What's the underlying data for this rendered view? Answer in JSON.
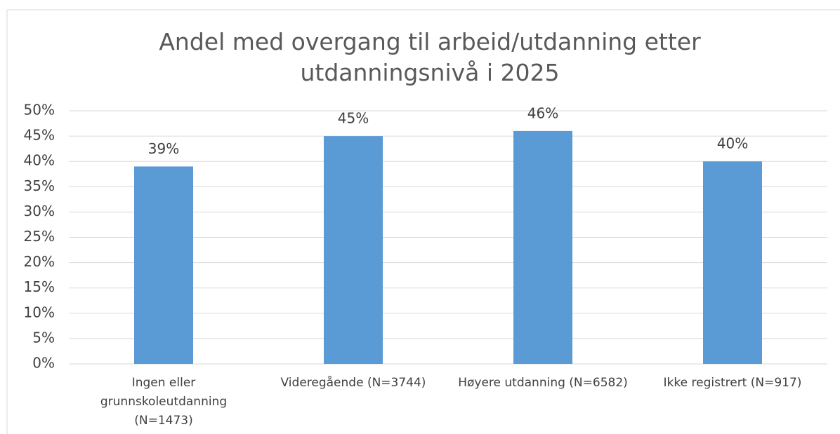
{
  "chart_data": {
    "type": "bar",
    "title": "Andel med overgang til arbeid/utdanning etter utdanningsnivå i 2025",
    "categories": [
      "Ingen eller grunnskoleutdanning (N=1473)",
      "Videregående (N=3744)",
      "Høyere utdanning (N=6582)",
      "Ikke registrert (N=917)"
    ],
    "values": [
      39,
      45,
      46,
      40
    ],
    "value_labels": [
      "39%",
      "45%",
      "46%",
      "40%"
    ],
    "color": "#5b9bd5",
    "ylim": [
      0,
      50
    ],
    "yticks": [
      {
        "value": 0,
        "label": "0%"
      },
      {
        "value": 5,
        "label": "5%"
      },
      {
        "value": 10,
        "label": "10%"
      },
      {
        "value": 15,
        "label": "15%"
      },
      {
        "value": 20,
        "label": "20%"
      },
      {
        "value": 25,
        "label": "25%"
      },
      {
        "value": 30,
        "label": "30%"
      },
      {
        "value": 35,
        "label": "35%"
      },
      {
        "value": 40,
        "label": "40%"
      },
      {
        "value": 45,
        "label": "45%"
      },
      {
        "value": 50,
        "label": "50%"
      }
    ],
    "grid": true
  }
}
